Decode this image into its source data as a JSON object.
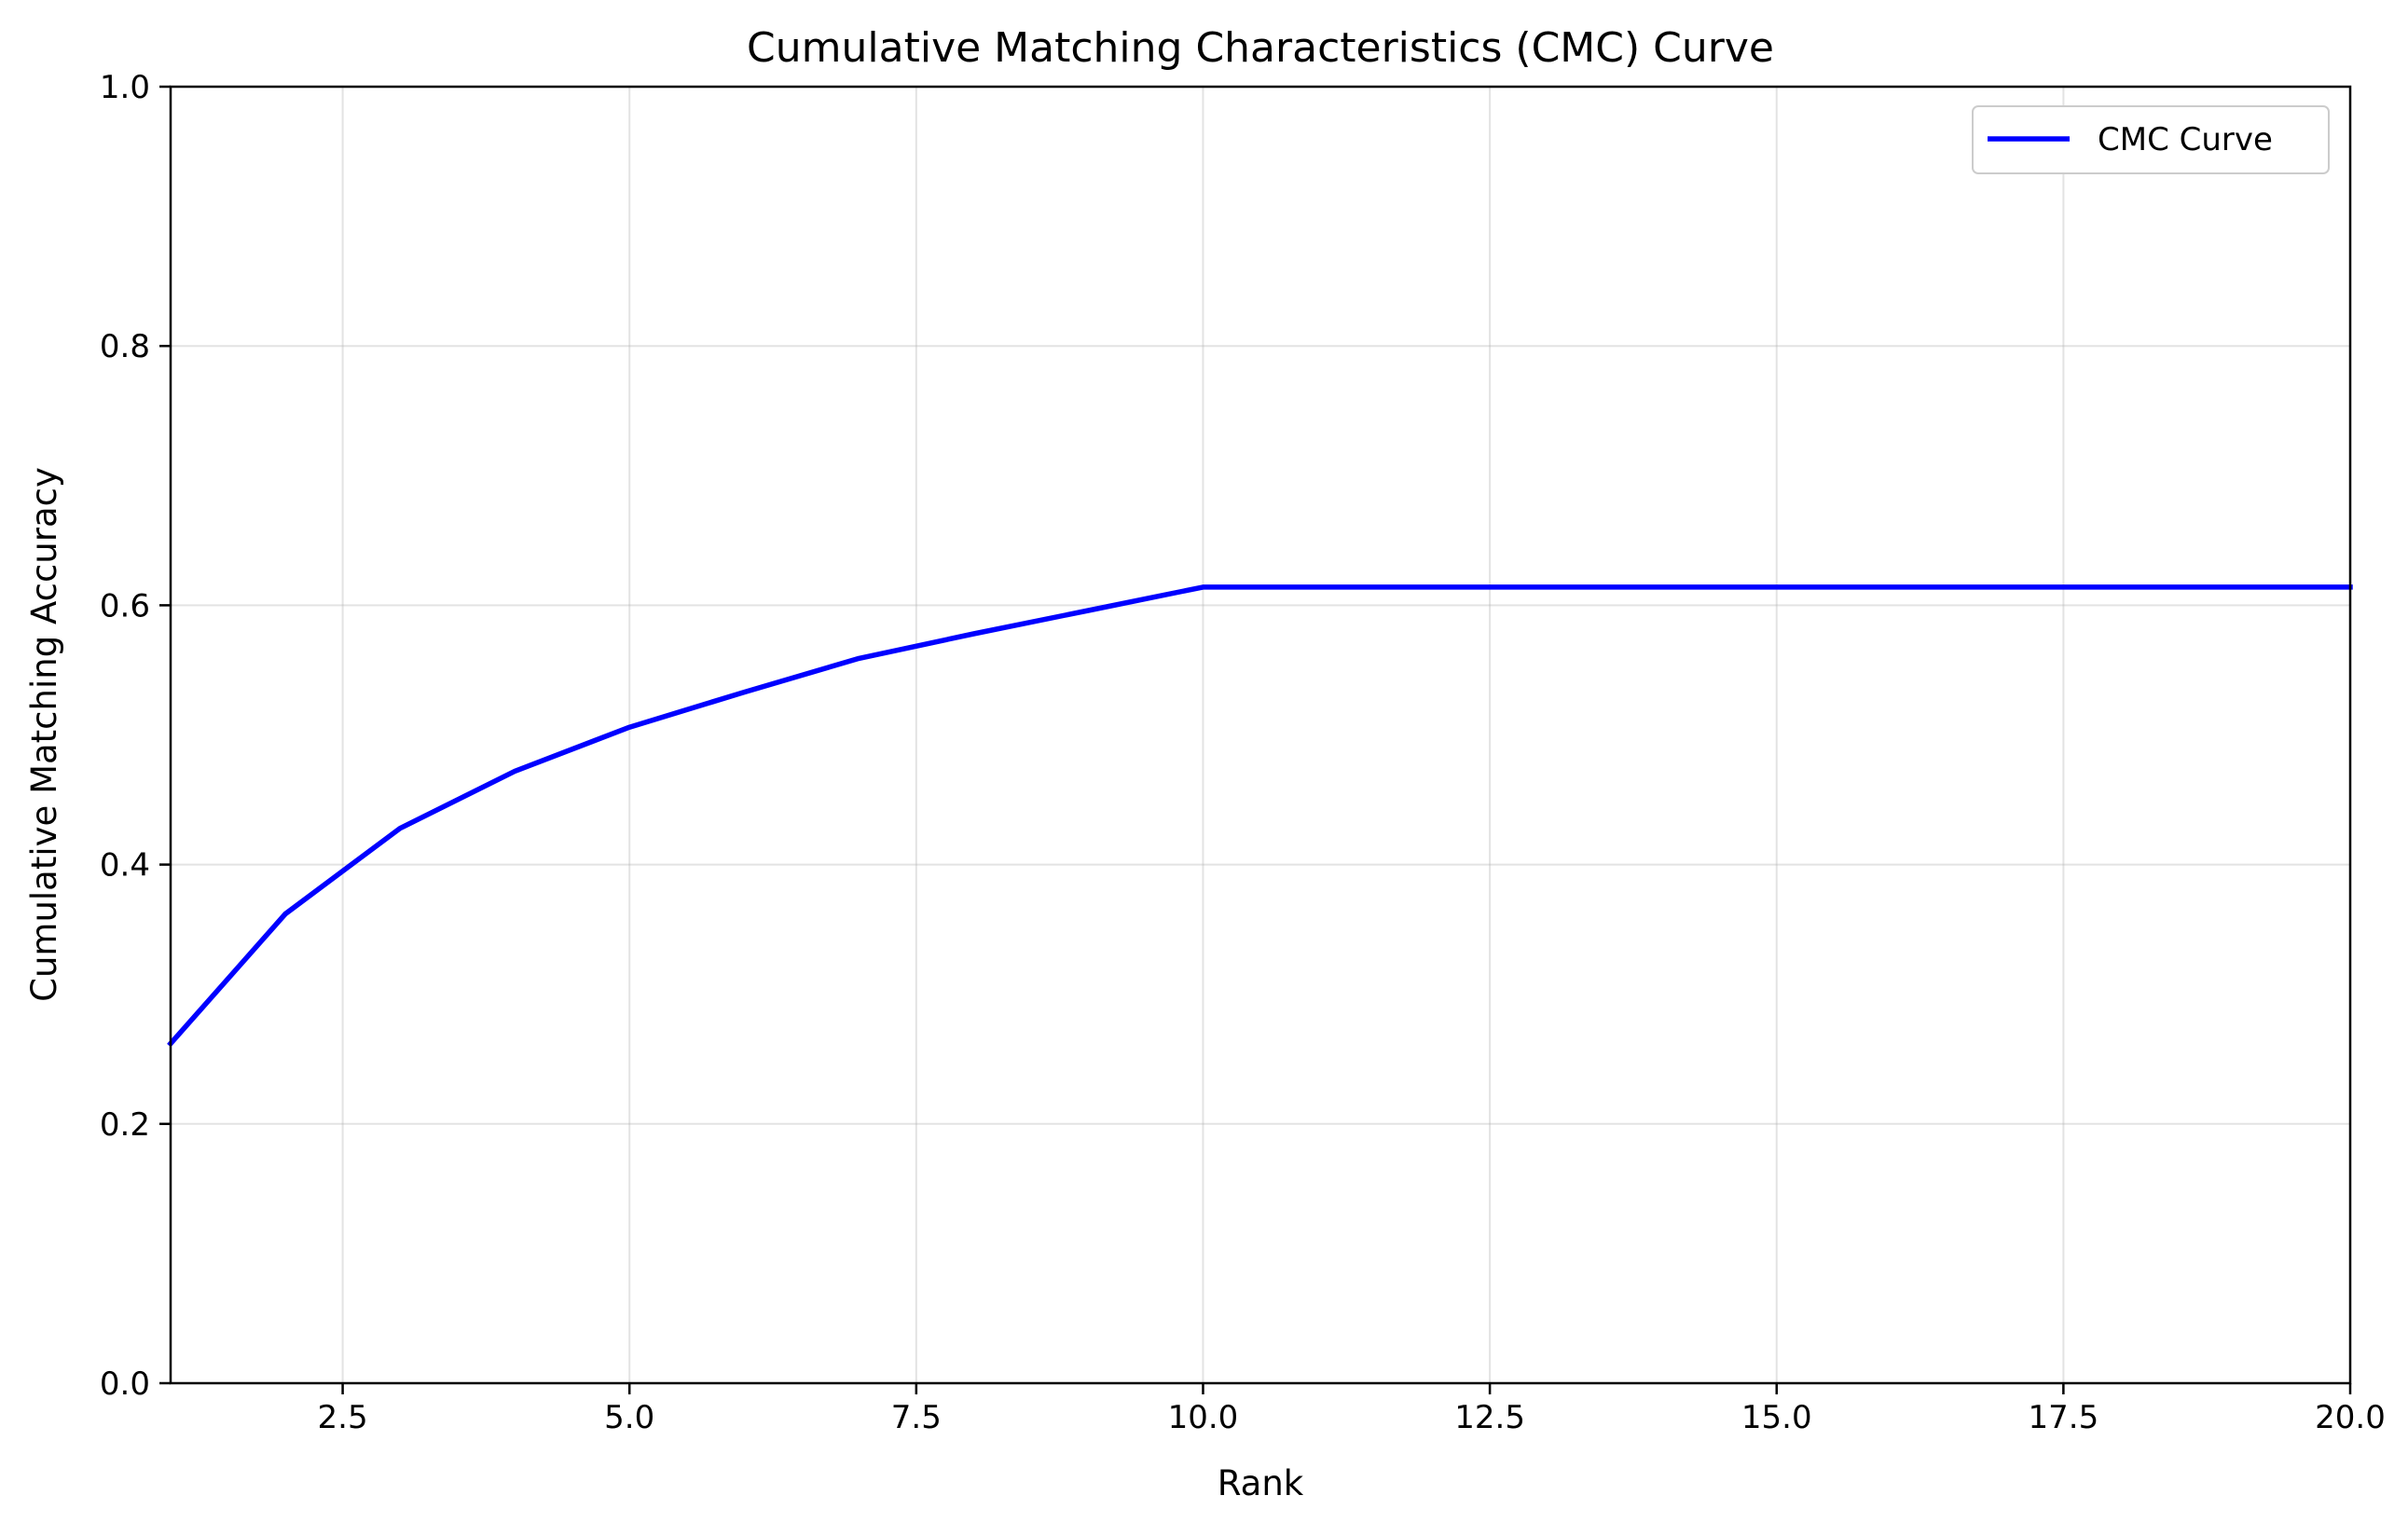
{
  "chart_data": {
    "type": "line",
    "title": "Cumulative Matching Characteristics (CMC) Curve",
    "xlabel": "Rank",
    "ylabel": "Cumulative Matching Accuracy",
    "xlim": [
      1,
      20
    ],
    "ylim": [
      0,
      1
    ],
    "xticks": [
      2.5,
      5.0,
      7.5,
      10.0,
      12.5,
      15.0,
      17.5,
      20.0
    ],
    "xtick_labels": [
      "2.5",
      "5.0",
      "7.5",
      "10.0",
      "12.5",
      "15.0",
      "17.5",
      "20.0"
    ],
    "yticks": [
      0.0,
      0.2,
      0.4,
      0.6,
      0.8,
      1.0
    ],
    "ytick_labels": [
      "0.0",
      "0.2",
      "0.4",
      "0.6",
      "0.8",
      "1.0"
    ],
    "grid": true,
    "legend_position": "upper right",
    "series": [
      {
        "name": "CMC Curve",
        "color": "#0000ff",
        "x": [
          1,
          2,
          3,
          4,
          5,
          6,
          7,
          8,
          9,
          10,
          11,
          12,
          13,
          14,
          15,
          16,
          17,
          18,
          19,
          20
        ],
        "values": [
          0.262,
          0.362,
          0.428,
          0.472,
          0.506,
          0.533,
          0.559,
          0.578,
          0.596,
          0.614,
          0.614,
          0.614,
          0.614,
          0.614,
          0.614,
          0.614,
          0.614,
          0.614,
          0.614,
          0.614
        ]
      }
    ]
  }
}
